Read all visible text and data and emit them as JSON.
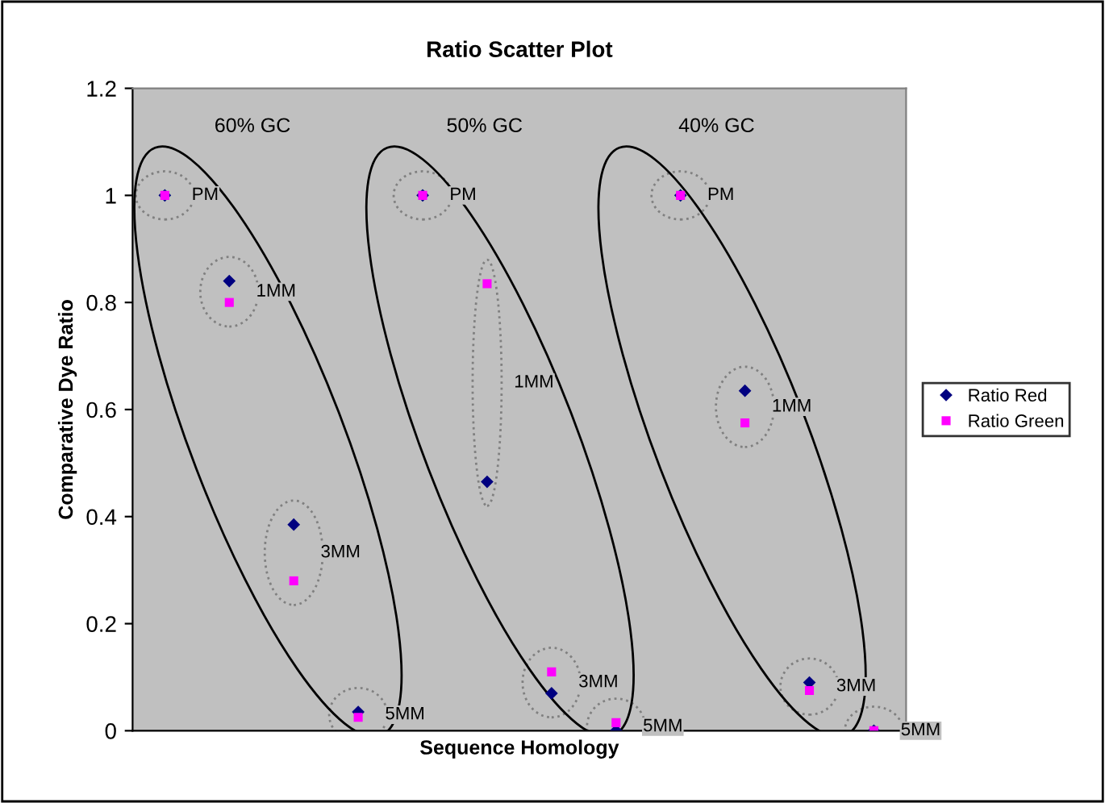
{
  "chart_data": {
    "type": "scatter",
    "title": "Ratio Scatter Plot",
    "xlabel": "Sequence Homology",
    "ylabel": "Comparative Dye Ratio",
    "categories": [
      null,
      null,
      null,
      null,
      null,
      null,
      null,
      null,
      null,
      null,
      null,
      null
    ],
    "series": [
      {
        "name": "Ratio Red",
        "color": "#000080",
        "marker": "diamond",
        "values": [
          1.0,
          0.84,
          0.385,
          0.035,
          1.0,
          0.465,
          0.07,
          0.0,
          1.0,
          0.635,
          0.09,
          0.0
        ]
      },
      {
        "name": "Ratio Green",
        "color": "#ff00ff",
        "marker": "square",
        "values": [
          1.0,
          0.8,
          0.28,
          0.025,
          1.0,
          0.835,
          0.11,
          0.015,
          1.0,
          0.575,
          0.075,
          0.0
        ]
      }
    ],
    "annotations": [
      "60% GC",
      "50% GC",
      "40% GC",
      "PM",
      "1MM",
      "3MM",
      "5MM",
      "PM",
      "1MM",
      "3MM",
      "5MM",
      "PM",
      "1MM",
      "3MM",
      "5MM"
    ],
    "ylim": [
      0,
      1.2
    ],
    "yticks": [
      0,
      0.2,
      0.4,
      0.6,
      0.8,
      1,
      1.2
    ],
    "grid": false,
    "legend": "right"
  }
}
